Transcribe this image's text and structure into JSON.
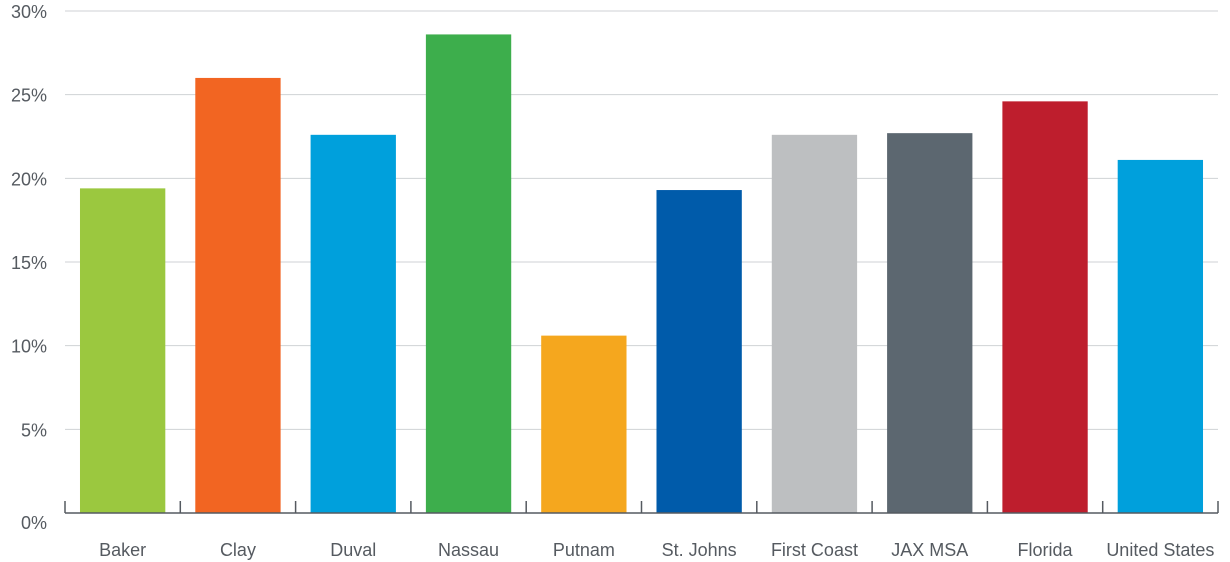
{
  "chart_data": {
    "type": "bar",
    "title": "",
    "xlabel": "",
    "ylabel": "",
    "ylim": [
      0,
      30
    ],
    "yticks": [
      0,
      5,
      10,
      15,
      20,
      25,
      30
    ],
    "ytick_labels": [
      "0%",
      "5%",
      "10%",
      "15%",
      "20%",
      "25%",
      "30%"
    ],
    "grid": true,
    "categories": [
      "Baker",
      "Clay",
      "Duval",
      "Nassau",
      "Putnam",
      "St. Johns",
      "First Coast",
      "JAX MSA",
      "Florida",
      "United States"
    ],
    "values": [
      19.4,
      26.0,
      22.6,
      28.6,
      10.6,
      19.3,
      22.6,
      22.7,
      24.6,
      21.1
    ],
    "colors": [
      "#9BC83F",
      "#F26522",
      "#00A0DC",
      "#3DAE4C",
      "#F5A71E",
      "#005BAA",
      "#BDBFC1",
      "#5C6770",
      "#BE1E2D",
      "#00A0DC"
    ]
  }
}
